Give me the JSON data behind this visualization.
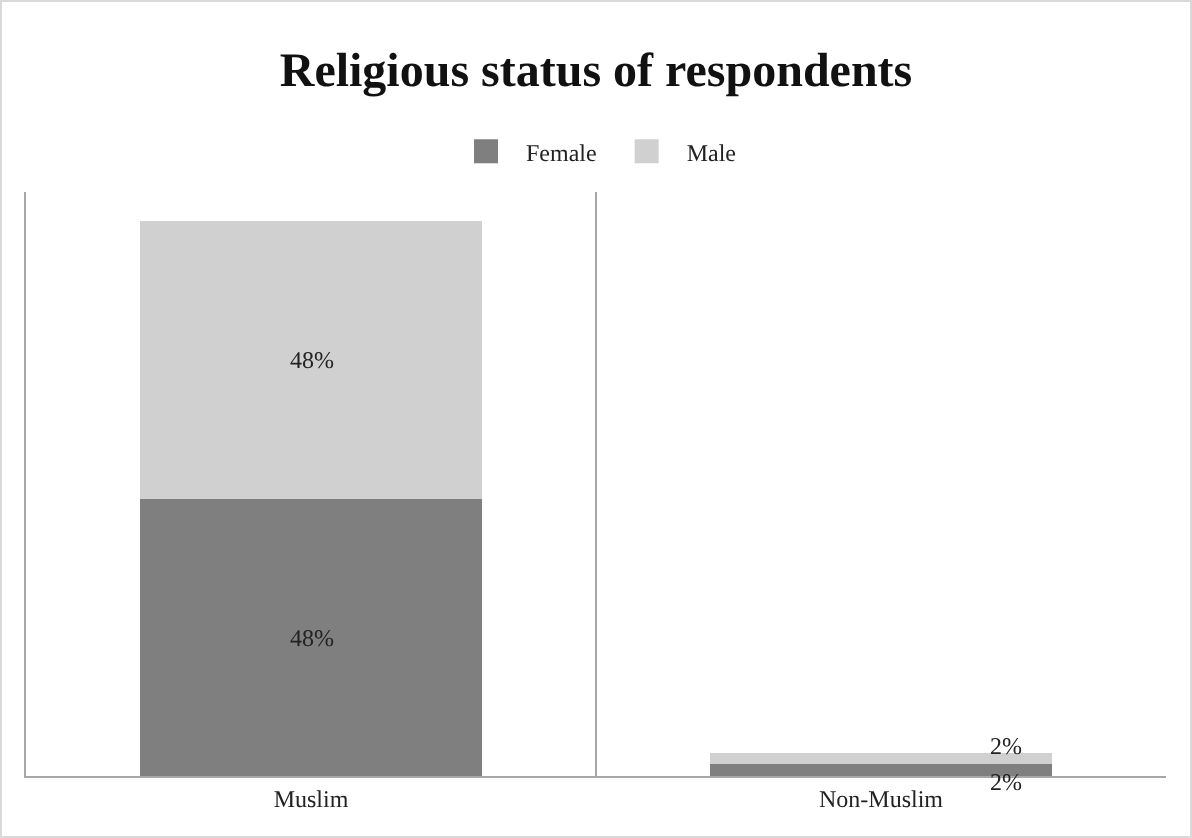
{
  "chart_data": {
    "type": "bar",
    "title": "Religious status of respondents",
    "categories": [
      "Muslim",
      "Non-Muslim"
    ],
    "stacked": true,
    "legend": "top",
    "grid": "x",
    "series": [
      {
        "name": "Female",
        "color": "#7f7f7f",
        "values": [
          48,
          2
        ],
        "value_labels": [
          "48%",
          "2%"
        ]
      },
      {
        "name": "Male",
        "color": "#d0d0d0",
        "values": [
          48,
          2
        ],
        "value_labels": [
          "48%",
          "2%"
        ]
      }
    ]
  }
}
